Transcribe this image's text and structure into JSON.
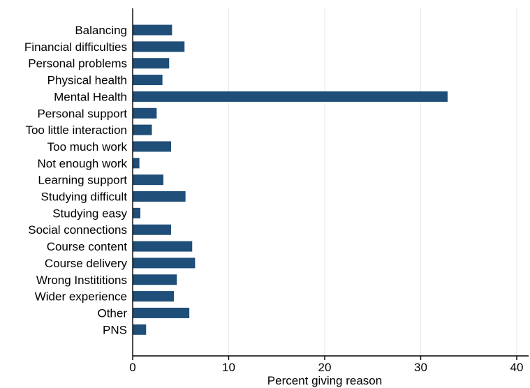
{
  "chart_data": {
    "type": "bar",
    "orientation": "horizontal",
    "title": "",
    "xlabel": "Percent giving reason",
    "ylabel": "",
    "xlim": [
      0,
      40
    ],
    "xticks": [
      0,
      10,
      20,
      30,
      40
    ],
    "grid": true,
    "legend": "none",
    "bar_color": "#1f4e79",
    "grid_color": "#e3ebed",
    "categories": [
      "Balancing",
      "Financial difficulties",
      "Personal problems",
      "Physical health",
      "Mental Health",
      "Personal support",
      "Too little interaction",
      "Too much work",
      "Not enough work",
      "Learning support",
      "Studying difficult",
      "Studying easy",
      "Social connections",
      "Course content",
      "Course delivery",
      "Wrong Instititions",
      "Wider experience",
      "Other",
      "PNS"
    ],
    "values": [
      4.1,
      5.4,
      3.8,
      3.1,
      32.8,
      2.5,
      2.0,
      4.0,
      0.7,
      3.2,
      5.5,
      0.8,
      4.0,
      6.2,
      6.5,
      4.6,
      4.3,
      5.9,
      1.4
    ]
  }
}
